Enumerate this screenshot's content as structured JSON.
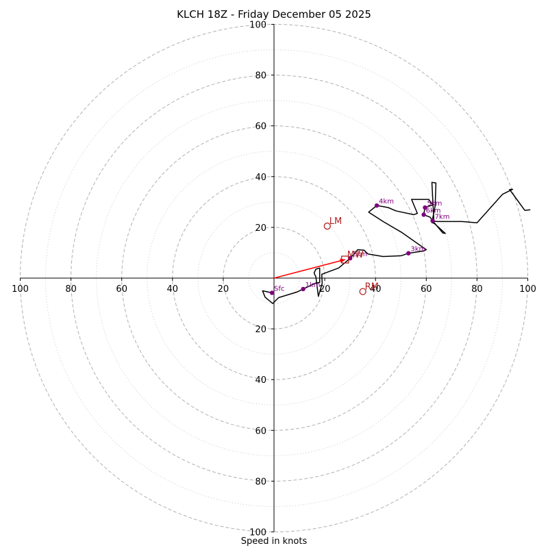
{
  "chart_data": {
    "type": "hodograph",
    "title": "KLCH 18Z - Friday December 05 2025",
    "xlabel": "Speed in knots",
    "range": [
      -100,
      100
    ],
    "ring_major": [
      20,
      40,
      60,
      80,
      100
    ],
    "ring_minor": [
      10,
      30,
      50,
      70,
      90
    ],
    "ticks_x": [
      {
        "value": -100,
        "label": "100"
      },
      {
        "value": -80,
        "label": "80"
      },
      {
        "value": -60,
        "label": "60"
      },
      {
        "value": -40,
        "label": "40"
      },
      {
        "value": -20,
        "label": "20"
      },
      {
        "value": 20,
        "label": "20"
      },
      {
        "value": 40,
        "label": "40"
      },
      {
        "value": 60,
        "label": "60"
      },
      {
        "value": 80,
        "label": "80"
      },
      {
        "value": 100,
        "label": "100"
      }
    ],
    "ticks_y": [
      {
        "value": 100,
        "label": "100"
      },
      {
        "value": 80,
        "label": "80"
      },
      {
        "value": 60,
        "label": "60"
      },
      {
        "value": 40,
        "label": "40"
      },
      {
        "value": 20,
        "label": "20"
      },
      {
        "value": -20,
        "label": "20"
      },
      {
        "value": -40,
        "label": "40"
      },
      {
        "value": -60,
        "label": "60"
      },
      {
        "value": -80,
        "label": "80"
      },
      {
        "value": -100,
        "label": "100"
      }
    ],
    "trace_color": "#000000",
    "height_color": "#800080",
    "motion_color": "#b22222",
    "shear_color": "#ff0000",
    "hodograph_trace": [
      [
        -0.8,
        -5.8
      ],
      [
        -4.5,
        -5
      ],
      [
        -3.5,
        -7.5
      ],
      [
        -0.5,
        -10.0
      ],
      [
        1.8,
        -7.7
      ],
      [
        9,
        -5.5
      ],
      [
        11.5,
        -4.3
      ],
      [
        16.3,
        -2
      ],
      [
        18,
        -1.7
      ],
      [
        18,
        4
      ],
      [
        16.5,
        3.5
      ],
      [
        15.8,
        2
      ],
      [
        16.5,
        0.5
      ],
      [
        17.5,
        -7.2
      ],
      [
        19,
        -2
      ],
      [
        18.8,
        1.5
      ],
      [
        25.5,
        4
      ],
      [
        30,
        7.8
      ],
      [
        33,
        11.2
      ],
      [
        35.5,
        11
      ],
      [
        37,
        9.5
      ],
      [
        43,
        8.5
      ],
      [
        50,
        8.8
      ],
      [
        53,
        9.8
      ],
      [
        59,
        10.7
      ],
      [
        60,
        11.2
      ],
      [
        50.5,
        17.9
      ],
      [
        43,
        22.3
      ],
      [
        37.3,
        26
      ],
      [
        40.5,
        28.6
      ],
      [
        45,
        27.8
      ],
      [
        48,
        26.5
      ],
      [
        55,
        25
      ],
      [
        56.5,
        25.5
      ],
      [
        54.2,
        31
      ],
      [
        61,
        31
      ],
      [
        62.5,
        28.8
      ],
      [
        59.5,
        27.8
      ],
      [
        59,
        25
      ],
      [
        60.2,
        24.5
      ],
      [
        61.5,
        24
      ],
      [
        62.5,
        22.6
      ],
      [
        66.5,
        17.8
      ],
      [
        67.5,
        17.6
      ],
      [
        63.2,
        21.5
      ],
      [
        62.2,
        21.9
      ],
      [
        63.5,
        28.5
      ],
      [
        63.8,
        37.5
      ],
      [
        62.2,
        37.7
      ],
      [
        63,
        22.4
      ],
      [
        64.5,
        22.3
      ],
      [
        74,
        22.3
      ],
      [
        80,
        21.8
      ],
      [
        90,
        33
      ],
      [
        94,
        35
      ],
      [
        92.8,
        34.9
      ],
      [
        93.5,
        34
      ],
      [
        98.8,
        26.7
      ],
      [
        101,
        26.9
      ]
    ],
    "height_markers": [
      {
        "label": "Sfc",
        "u": -0.8,
        "v": -5.8
      },
      {
        "label": "1km",
        "u": 11.5,
        "v": -4.3
      },
      {
        "label": "2km",
        "u": 30,
        "v": 7.8
      },
      {
        "label": "3km",
        "u": 53,
        "v": 9.8
      },
      {
        "label": "4km",
        "u": 40.5,
        "v": 28.6
      },
      {
        "label": "5km",
        "u": 59.5,
        "v": 27.8
      },
      {
        "label": "6km",
        "u": 59,
        "v": 25
      },
      {
        "label": "7km",
        "u": 62.5,
        "v": 22.6
      }
    ],
    "storm_motion": {
      "LM": {
        "label": "LM",
        "u": 21,
        "v": 20.5
      },
      "RM": {
        "label": "RM",
        "u": 35,
        "v": -5.3
      },
      "MW": {
        "label": "MW",
        "u": 28,
        "v": 7.3
      }
    },
    "shear_vector": {
      "from": [
        0,
        0
      ],
      "to": [
        28,
        7.3
      ]
    }
  }
}
